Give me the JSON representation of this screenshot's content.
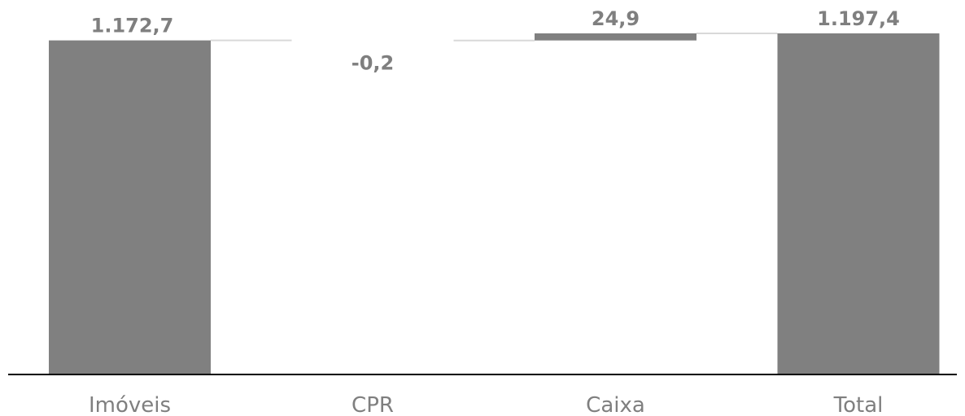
{
  "chart_data": {
    "type": "bar",
    "subtype": "waterfall",
    "title": "",
    "xlabel": "",
    "ylabel": "",
    "categories": [
      "Imóveis",
      "CPR",
      "Caixa",
      "Total"
    ],
    "values": [
      1172.7,
      -0.2,
      24.9,
      1197.4
    ],
    "value_labels": [
      "1.172,7",
      "-0,2",
      "24,9",
      "1.197,4"
    ],
    "bar_kinds": [
      "total",
      "delta",
      "delta",
      "total"
    ],
    "ylim": [
      0,
      1197.4
    ],
    "grid": false,
    "legend": "none",
    "colors": {
      "bar": "#808080",
      "connector": "#d9d9d9",
      "axis": "#000000",
      "text": "#7f7f7f"
    }
  }
}
